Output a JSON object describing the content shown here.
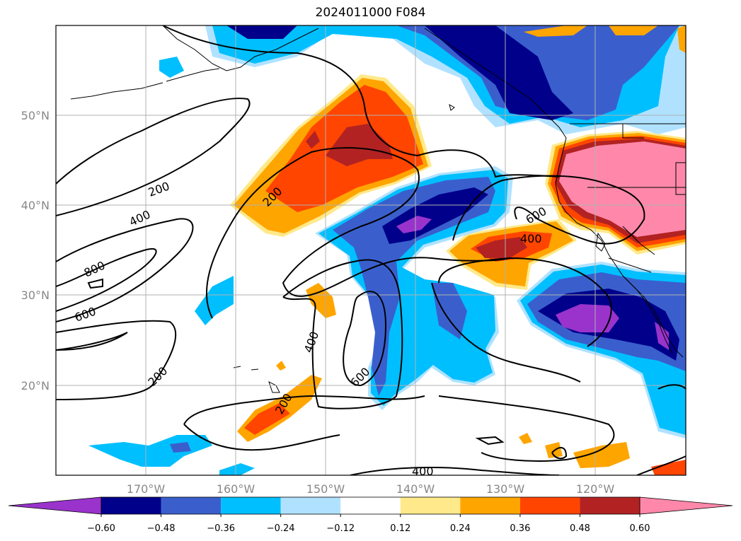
{
  "title": "2024011000 F084",
  "map": {
    "lon_labels": [
      "170°W",
      "160°W",
      "150°W",
      "140°W",
      "130°W",
      "120°W"
    ],
    "lat_labels": [
      "50°N",
      "40°N",
      "30°N",
      "20°N"
    ],
    "contour_labels": [
      "200",
      "400",
      "800",
      "600",
      "200",
      "200",
      "400",
      "600",
      "200",
      "600",
      "400",
      "400"
    ]
  },
  "colorbar": {
    "ticks": [
      "−0.60",
      "−0.48",
      "−0.36",
      "−0.24",
      "−0.12",
      "0.12",
      "0.24",
      "0.36",
      "0.48",
      "0.60"
    ],
    "colors": [
      "#9933cc",
      "#00008b",
      "#3a5fcd",
      "#00bfff",
      "#b0e2ff",
      "#ffffff",
      "#ffe98a",
      "#ffa500",
      "#ff4500",
      "#b22222",
      "#ff88aa"
    ]
  }
}
